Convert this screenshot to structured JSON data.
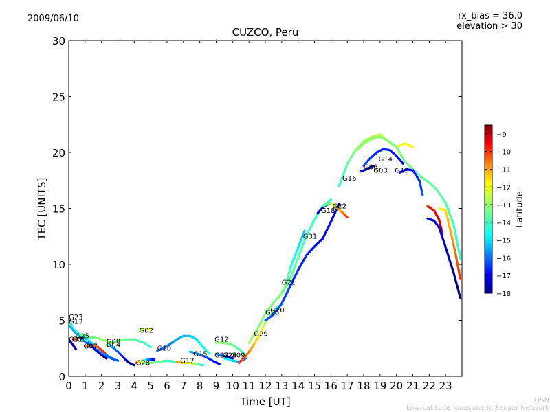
{
  "header": {
    "date": "2009/06/10",
    "rx_bias": "rx_bias = 36.0",
    "elevation": "elevation > 30"
  },
  "footer": {
    "line1": "LISN",
    "line2": "Low-Latitude Ionospheric Sensor Network"
  },
  "chart_data": {
    "type": "scatter",
    "title": "CUZCO, Peru",
    "xlabel": "Time [UT]",
    "ylabel": "TEC [UNITS]",
    "xlim": [
      0,
      24
    ],
    "ylim": [
      0,
      30
    ],
    "xticks": [
      0,
      1,
      2,
      3,
      4,
      5,
      6,
      7,
      8,
      9,
      10,
      11,
      12,
      13,
      14,
      15,
      16,
      17,
      18,
      19,
      20,
      21,
      22,
      23
    ],
    "yticks": [
      0,
      5,
      10,
      15,
      20,
      25,
      30
    ],
    "colorbar": {
      "label": "Latitude",
      "min": -18,
      "max": -8.5,
      "ticks": [
        -9,
        -10,
        -11,
        -12,
        -13,
        -14,
        -15,
        -16,
        -17,
        -18
      ],
      "colormap": [
        "#00007f",
        "#0000ff",
        "#007fff",
        "#00ffff",
        "#7fff7f",
        "#ffff00",
        "#ff7f00",
        "#ff0000",
        "#7f0000"
      ]
    },
    "series": [
      {
        "name": "G23",
        "lat_start": -14,
        "lat_end": -13,
        "points": [
          [
            0.05,
            4.8
          ],
          [
            0.3,
            4.2
          ],
          [
            0.7,
            3.7
          ],
          [
            1.2,
            3.5
          ],
          [
            1.8,
            3.4
          ],
          [
            2.4,
            3.1
          ]
        ]
      },
      {
        "name": "G13",
        "lat_start": -15,
        "lat_end": -16,
        "points": [
          [
            0.05,
            4.5
          ],
          [
            0.4,
            3.9
          ],
          [
            0.9,
            3.2
          ],
          [
            1.5,
            2.6
          ],
          [
            2.0,
            2.0
          ],
          [
            2.6,
            1.6
          ],
          [
            3.0,
            1.4
          ]
        ]
      },
      {
        "name": "G25",
        "lat_start": -17,
        "lat_end": -18,
        "points": [
          [
            0.05,
            3.2
          ],
          [
            0.25,
            2.8
          ],
          [
            0.45,
            2.4
          ]
        ]
      },
      {
        "name": "G32",
        "lat_start": -10,
        "lat_end": -11,
        "points": [
          [
            0.3,
            3.3
          ],
          [
            0.6,
            3.4
          ]
        ]
      },
      {
        "name": "G05",
        "lat_start": -14,
        "lat_end": -16,
        "points": [
          [
            0.6,
            3.6
          ],
          [
            1.0,
            3.4
          ],
          [
            1.5,
            2.9
          ],
          [
            2.0,
            2.3
          ],
          [
            2.4,
            1.8
          ],
          [
            2.8,
            1.5
          ]
        ]
      },
      {
        "name": "G07",
        "lat_start": -11,
        "lat_end": -10,
        "points": [
          [
            1.0,
            2.7
          ],
          [
            1.4,
            2.8
          ],
          [
            1.8,
            2.6
          ],
          [
            2.2,
            2.1
          ]
        ]
      },
      {
        "name": "G03",
        "lat_start": -16,
        "lat_end": -18,
        "points": [
          [
            1.2,
            3.0
          ],
          [
            1.6,
            2.4
          ],
          [
            2.0,
            1.9
          ],
          [
            2.3,
            1.6
          ]
        ]
      },
      {
        "name": "G08",
        "lat_start": -13,
        "lat_end": -14,
        "points": [
          [
            2.3,
            2.8
          ],
          [
            2.8,
            3.1
          ],
          [
            3.4,
            3.3
          ],
          [
            4.0,
            3.3
          ],
          [
            4.6,
            3.0
          ],
          [
            5.0,
            2.6
          ]
        ]
      },
      {
        "name": "G04",
        "lat_start": -15,
        "lat_end": -18,
        "points": [
          [
            2.5,
            2.8
          ],
          [
            3.0,
            2.2
          ],
          [
            3.4,
            1.6
          ],
          [
            3.7,
            1.2
          ],
          [
            4.0,
            1.0
          ]
        ]
      },
      {
        "name": "G02",
        "lat_start": -13,
        "lat_end": -12,
        "points": [
          [
            4.3,
            4.1
          ],
          [
            4.6,
            4.2
          ],
          [
            5.0,
            4.2
          ]
        ]
      },
      {
        "name": "G28",
        "lat_start": -10,
        "lat_end": -17,
        "points": [
          [
            4.1,
            1.2
          ],
          [
            4.5,
            1.4
          ],
          [
            4.8,
            1.5
          ],
          [
            5.2,
            1.5
          ]
        ]
      },
      {
        "name": "G10",
        "lat_start": -16,
        "lat_end": -14,
        "points": [
          [
            5.4,
            2.3
          ],
          [
            5.8,
            2.5
          ],
          [
            6.2,
            2.9
          ],
          [
            6.6,
            3.3
          ],
          [
            7.0,
            3.6
          ],
          [
            7.4,
            3.6
          ],
          [
            7.8,
            3.3
          ],
          [
            8.2,
            2.6
          ],
          [
            8.6,
            2.0
          ]
        ]
      },
      {
        "name": "G17",
        "lat_start": -13,
        "lat_end": -14,
        "points": [
          [
            4.5,
            1.2
          ],
          [
            5.0,
            1.2
          ],
          [
            5.5,
            1.3
          ],
          [
            6.0,
            1.4
          ],
          [
            6.5,
            1.3
          ]
        ]
      },
      {
        "name": "G26",
        "lat_start": -11,
        "lat_end": -14,
        "points": [
          [
            6.6,
            1.3
          ],
          [
            7.0,
            1.2
          ],
          [
            7.4,
            1.2
          ],
          [
            7.8,
            1.1
          ],
          [
            8.2,
            1.0
          ]
        ]
      },
      {
        "name": "G15",
        "lat_start": -15,
        "lat_end": -17,
        "points": [
          [
            7.4,
            2.2
          ],
          [
            7.9,
            2.0
          ],
          [
            8.4,
            1.7
          ],
          [
            8.9,
            1.3
          ],
          [
            9.2,
            1.1
          ]
        ]
      },
      {
        "name": "G12",
        "lat_start": -13,
        "lat_end": -14,
        "points": [
          [
            9.0,
            3.0
          ],
          [
            9.5,
            3.0
          ],
          [
            10.0,
            2.8
          ],
          [
            10.5,
            2.3
          ],
          [
            10.8,
            1.9
          ]
        ]
      },
      {
        "name": "G27",
        "lat_start": -15,
        "lat_end": -17,
        "points": [
          [
            9.0,
            2.0
          ],
          [
            9.5,
            1.8
          ],
          [
            10.0,
            1.6
          ]
        ]
      },
      {
        "name": "G09",
        "lat_start": -14,
        "lat_end": -16,
        "points": [
          [
            9.5,
            1.6
          ],
          [
            10.0,
            1.4
          ],
          [
            10.4,
            1.3
          ],
          [
            10.8,
            1.6
          ]
        ]
      },
      {
        "name": "G29",
        "lat_start": -10,
        "lat_end": -14,
        "points": [
          [
            10.4,
            1.2
          ],
          [
            10.8,
            1.8
          ],
          [
            11.2,
            2.6
          ],
          [
            11.6,
            3.6
          ],
          [
            12.0,
            4.8
          ],
          [
            12.4,
            5.6
          ],
          [
            12.8,
            6.3
          ]
        ]
      },
      {
        "name": "G20",
        "lat_start": -13,
        "lat_end": -14,
        "points": [
          [
            11.0,
            3.0
          ],
          [
            11.5,
            4.2
          ],
          [
            12.0,
            5.6
          ],
          [
            12.5,
            6.6
          ],
          [
            13.0,
            7.4
          ],
          [
            13.5,
            8.6
          ],
          [
            14.0,
            10.6
          ],
          [
            14.5,
            12.5
          ],
          [
            15.0,
            14.0
          ],
          [
            15.5,
            15.2
          ],
          [
            16.0,
            15.8
          ]
        ]
      },
      {
        "name": "G21",
        "lat_start": -16,
        "lat_end": -17,
        "points": [
          [
            12.0,
            5.0
          ],
          [
            12.5,
            5.5
          ],
          [
            13.0,
            6.5
          ],
          [
            13.5,
            8.0
          ],
          [
            14.0,
            9.5
          ],
          [
            14.5,
            10.8
          ],
          [
            15.0,
            11.6
          ],
          [
            15.5,
            12.3
          ],
          [
            16.0,
            13.8
          ],
          [
            16.5,
            15.4
          ]
        ]
      },
      {
        "name": "G31",
        "lat_start": -13,
        "lat_end": -15,
        "points": [
          [
            12.8,
            7.0
          ],
          [
            13.2,
            8.0
          ],
          [
            13.6,
            10.0
          ],
          [
            14.0,
            11.5
          ],
          [
            14.4,
            13.0
          ]
        ]
      },
      {
        "name": "G18",
        "lat_start": -17,
        "lat_end": -18,
        "points": [
          [
            15.2,
            14.6
          ],
          [
            15.6,
            15.2
          ],
          [
            16.0,
            15.5
          ]
        ]
      },
      {
        "name": "G22",
        "lat_start": -14,
        "lat_end": -10,
        "points": [
          [
            15.5,
            15.2
          ],
          [
            16.0,
            15.5
          ],
          [
            16.4,
            15.0
          ],
          [
            16.8,
            14.5
          ],
          [
            17.0,
            14.2
          ]
        ]
      },
      {
        "name": "G16",
        "lat_start": -14,
        "lat_end": -12,
        "points": [
          [
            16.5,
            17.0
          ],
          [
            17.0,
            19.0
          ],
          [
            17.5,
            20.2
          ],
          [
            18.0,
            21.0
          ],
          [
            18.5,
            21.4
          ],
          [
            19.0,
            21.6
          ],
          [
            19.5,
            21.0
          ],
          [
            20.0,
            20.5
          ],
          [
            20.5,
            20.8
          ],
          [
            21.0,
            20.5
          ]
        ]
      },
      {
        "name": "G06",
        "lat_start": -17,
        "lat_end": -18,
        "points": [
          [
            17.8,
            18.3
          ],
          [
            18.2,
            18.5
          ],
          [
            18.6,
            18.8
          ]
        ]
      },
      {
        "name": "G03",
        "lat_start": -16,
        "lat_end": -17,
        "points": [
          [
            18.0,
            18.8
          ],
          [
            18.4,
            19.5
          ],
          [
            18.8,
            20.0
          ],
          [
            19.2,
            20.3
          ],
          [
            19.6,
            20.2
          ],
          [
            20.0,
            19.7
          ],
          [
            20.4,
            19.0
          ]
        ]
      },
      {
        "name": "G14",
        "lat_start": -13,
        "lat_end": -14,
        "points": [
          [
            17.6,
            20.2
          ],
          [
            18.0,
            20.8
          ],
          [
            18.5,
            21.2
          ],
          [
            19.0,
            21.4
          ],
          [
            19.5,
            21.0
          ],
          [
            20.0,
            20.5
          ],
          [
            20.5,
            19.2
          ],
          [
            21.0,
            18.5
          ],
          [
            21.5,
            17.8
          ],
          [
            22.0,
            17.3
          ],
          [
            22.5,
            16.6
          ],
          [
            23.0,
            15.5
          ],
          [
            23.5,
            13.5
          ],
          [
            23.9,
            10.5
          ]
        ]
      },
      {
        "name": "G19",
        "lat_start": -17,
        "lat_end": -16,
        "points": [
          [
            20.2,
            18.2
          ],
          [
            20.6,
            18.5
          ],
          [
            21.0,
            18.4
          ],
          [
            21.4,
            17.5
          ],
          [
            21.6,
            16.2
          ]
        ]
      },
      {
        "name": "",
        "lat_start": -10,
        "lat_end": -9,
        "points": [
          [
            21.9,
            15.2
          ],
          [
            22.3,
            14.8
          ],
          [
            22.6,
            14.0
          ],
          [
            22.8,
            12.8
          ]
        ]
      },
      {
        "name": "",
        "lat_start": -17,
        "lat_end": -18,
        "points": [
          [
            21.9,
            14.1
          ],
          [
            22.3,
            13.9
          ],
          [
            22.6,
            13.3
          ],
          [
            22.9,
            12.0
          ],
          [
            23.2,
            10.6
          ],
          [
            23.5,
            9.2
          ],
          [
            23.9,
            7.0
          ]
        ]
      },
      {
        "name": "",
        "lat_start": -12,
        "lat_end": -10,
        "points": [
          [
            22.6,
            15.0
          ],
          [
            23.0,
            14.8
          ],
          [
            23.3,
            13.0
          ],
          [
            23.6,
            11.0
          ],
          [
            23.9,
            8.7
          ]
        ]
      }
    ],
    "label_positions": [
      {
        "name": "G23",
        "x": 0.0,
        "y": 5.1
      },
      {
        "name": "G13",
        "x": 0.0,
        "y": 4.7
      },
      {
        "name": "G25",
        "x": 0.4,
        "y": 3.4
      },
      {
        "name": "G32",
        "x": 0.0,
        "y": 3.1
      },
      {
        "name": "G07",
        "x": 0.9,
        "y": 2.5
      },
      {
        "name": "G05",
        "x": 0.2,
        "y": 3.1
      },
      {
        "name": "G08",
        "x": 2.3,
        "y": 2.9
      },
      {
        "name": "G04",
        "x": 2.3,
        "y": 2.6
      },
      {
        "name": "G02",
        "x": 4.3,
        "y": 3.9
      },
      {
        "name": "G10",
        "x": 5.4,
        "y": 2.3
      },
      {
        "name": "G28",
        "x": 4.1,
        "y": 1.0
      },
      {
        "name": "G17",
        "x": 6.8,
        "y": 1.2
      },
      {
        "name": "G15",
        "x": 7.6,
        "y": 1.8
      },
      {
        "name": "G12",
        "x": 8.9,
        "y": 3.1
      },
      {
        "name": "G27",
        "x": 8.9,
        "y": 1.7
      },
      {
        "name": "G26",
        "x": 9.4,
        "y": 1.7
      },
      {
        "name": "G09",
        "x": 9.9,
        "y": 1.7
      },
      {
        "name": "G29",
        "x": 11.3,
        "y": 3.6
      },
      {
        "name": "G25",
        "x": 12.0,
        "y": 5.5
      },
      {
        "name": "G20",
        "x": 12.3,
        "y": 5.7
      },
      {
        "name": "G21",
        "x": 13.0,
        "y": 8.2
      },
      {
        "name": "G31",
        "x": 14.3,
        "y": 12.3
      },
      {
        "name": "G18",
        "x": 15.4,
        "y": 14.6
      },
      {
        "name": "G22",
        "x": 16.1,
        "y": 15.0
      },
      {
        "name": "G16",
        "x": 16.7,
        "y": 17.5
      },
      {
        "name": "G06",
        "x": 18.0,
        "y": 18.5
      },
      {
        "name": "G03",
        "x": 18.6,
        "y": 18.2
      },
      {
        "name": "G14",
        "x": 18.9,
        "y": 19.2
      },
      {
        "name": "G19",
        "x": 19.9,
        "y": 18.2
      }
    ]
  }
}
